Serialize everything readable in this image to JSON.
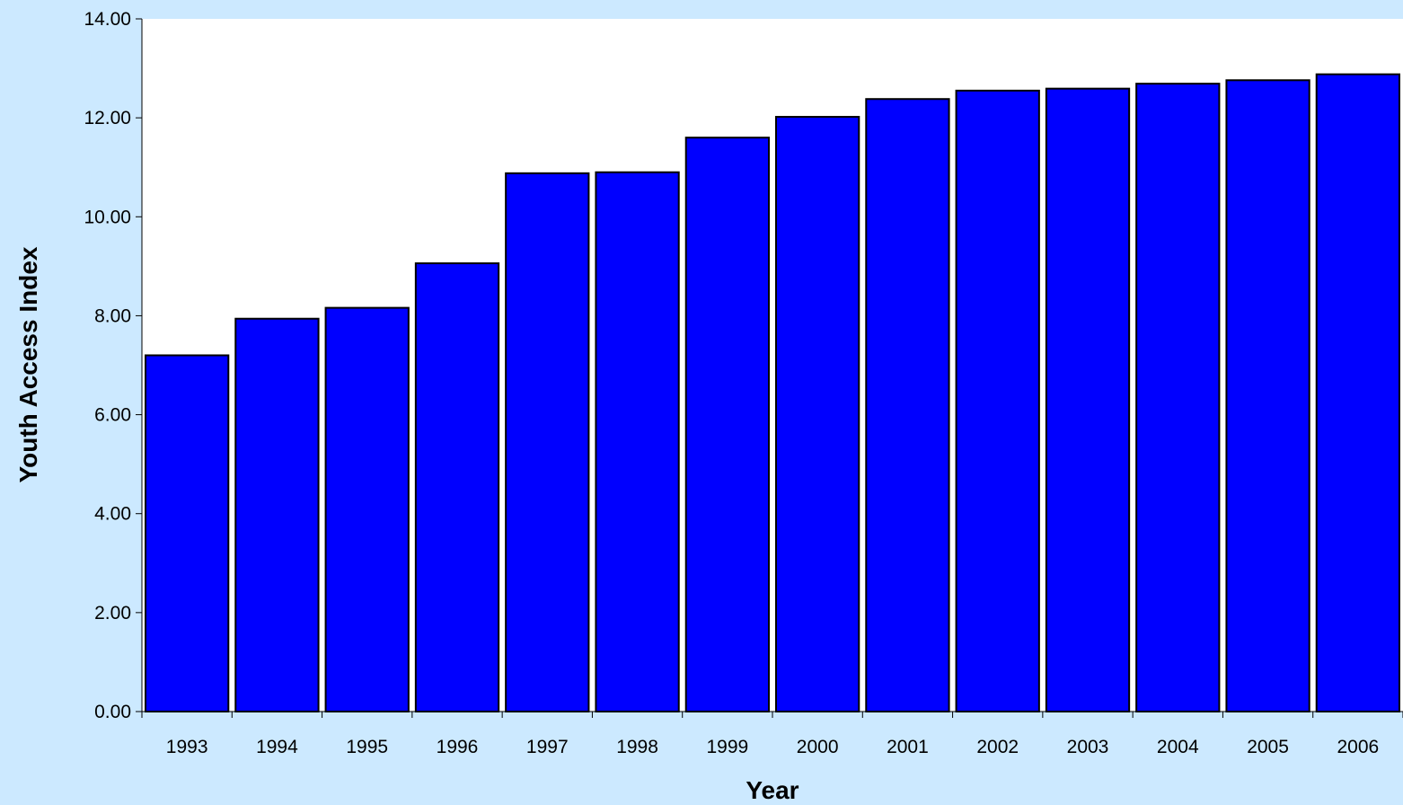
{
  "chart_data": {
    "type": "bar",
    "title": "",
    "xlabel": "Year",
    "ylabel": "Youth Access Index",
    "categories": [
      "1993",
      "1994",
      "1995",
      "1996",
      "1997",
      "1998",
      "1999",
      "2000",
      "2001",
      "2002",
      "2003",
      "2004",
      "2005",
      "2006"
    ],
    "values": [
      7.2,
      7.94,
      8.16,
      9.06,
      10.88,
      10.9,
      11.6,
      12.02,
      12.38,
      12.55,
      12.59,
      12.69,
      12.76,
      12.88
    ],
    "ylim": [
      0,
      14
    ],
    "yticks": [
      "0.00",
      "2.00",
      "4.00",
      "6.00",
      "8.00",
      "10.00",
      "12.00",
      "14.00"
    ],
    "grid": false,
    "legend": "none",
    "colors": {
      "background": "#cce9ff",
      "plot_area": "#ffffff",
      "bar_fill": "#0000ff",
      "bar_stroke": "#000000"
    }
  }
}
